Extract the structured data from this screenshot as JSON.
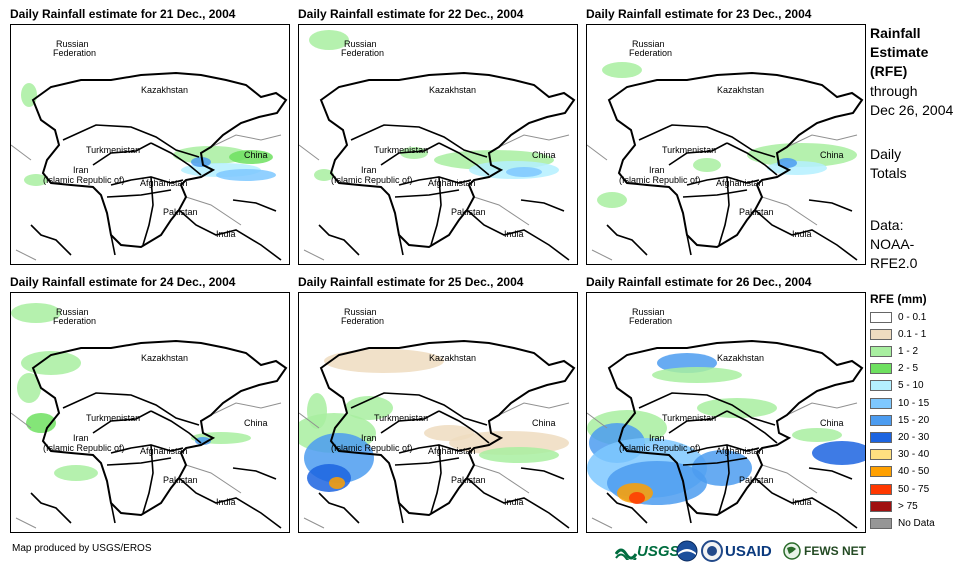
{
  "panels": [
    {
      "title": "Daily Rainfall estimate for 21 Dec., 2004"
    },
    {
      "title": "Daily Rainfall estimate for 22 Dec., 2004"
    },
    {
      "title": "Daily Rainfall estimate for 23 Dec., 2004"
    },
    {
      "title": "Daily Rainfall estimate for 24 Dec., 2004"
    },
    {
      "title": "Daily Rainfall estimate for 25 Dec., 2004"
    },
    {
      "title": "Daily Rainfall estimate for 26 Dec., 2004"
    }
  ],
  "countries": {
    "russia_1": "Russian",
    "russia_2": "Federation",
    "kazakhstan": "Kazakhstan",
    "turkmenistan": "Turkmenistan",
    "iran_1": "Iran",
    "iran_2": "(Islamic Republic of)",
    "afghanistan": "Afghanistan",
    "pakistan": "Pakistan",
    "china": "China",
    "india": "India"
  },
  "sidebar": {
    "title_1": "Rainfall",
    "title_2": "Estimate",
    "title_3": "(RFE)",
    "through": "through",
    "date": "Dec 26, 2004",
    "daily_1": "Daily",
    "daily_2": "Totals",
    "data_1": "Data:",
    "data_2": "NOAA-",
    "data_3": "RFE2.0"
  },
  "legend": {
    "title": "RFE (mm)",
    "items": [
      {
        "label": "0 - 0.1",
        "color": "#ffffff"
      },
      {
        "label": "0.1 - 1",
        "color": "#eedcc0"
      },
      {
        "label": "1 - 2",
        "color": "#a8eea0"
      },
      {
        "label": "2 - 5",
        "color": "#6ee060"
      },
      {
        "label": "5 - 10",
        "color": "#b4f0ff"
      },
      {
        "label": "10 - 15",
        "color": "#7ec8ff"
      },
      {
        "label": "15 - 20",
        "color": "#4c9cf0"
      },
      {
        "label": "20 - 30",
        "color": "#1c64e0"
      },
      {
        "label": "30 - 40",
        "color": "#ffe080"
      },
      {
        "label": "40 - 50",
        "color": "#ffa000"
      },
      {
        "label": "50 - 75",
        "color": "#ff3800"
      },
      {
        "label": "> 75",
        "color": "#a01010"
      },
      {
        "label": "No Data",
        "color": "#969696"
      }
    ]
  },
  "footer": {
    "credit": "Map produced by USGS/EROS",
    "logo_usgs": "USGS",
    "logo_usaid": "USAID",
    "logo_fews": "FEWS NET"
  }
}
